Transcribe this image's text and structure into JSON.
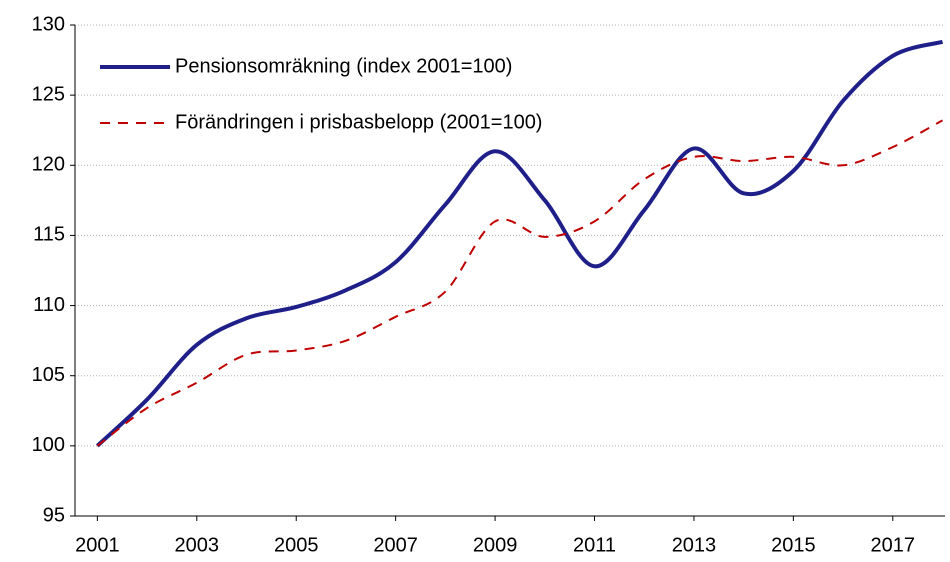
{
  "chart_data": {
    "type": "line",
    "x": [
      2001,
      2002,
      2003,
      2004,
      2005,
      2006,
      2007,
      2008,
      2009,
      2010,
      2011,
      2012,
      2013,
      2014,
      2015,
      2016,
      2017,
      2018
    ],
    "series": [
      {
        "name": "Pensionsomräkning (index 2001=100)",
        "color": "#1f1f8a",
        "style": "solid",
        "values": [
          100,
          103.3,
          107.2,
          109.1,
          109.9,
          111.1,
          113.1,
          117.2,
          121.0,
          117.5,
          112.8,
          116.8,
          121.2,
          118.0,
          119.6,
          124.6,
          127.8,
          128.8
        ]
      },
      {
        "name": "Förändringen i prisbasbelopp (2001=100)",
        "color": "#c00000",
        "style": "dashed",
        "values": [
          100,
          102.7,
          104.5,
          106.5,
          106.8,
          107.5,
          109.2,
          111.0,
          116.0,
          114.9,
          116.0,
          119.0,
          120.6,
          120.3,
          120.6,
          120.0,
          121.3,
          123.2
        ]
      }
    ],
    "xlim": [
      2000.55,
      2018.05
    ],
    "xticks": [
      2001,
      2003,
      2005,
      2007,
      2009,
      2011,
      2013,
      2015,
      2017
    ],
    "ylim": [
      95,
      130
    ],
    "yticks": [
      95,
      100,
      105,
      110,
      115,
      120,
      125,
      130
    ],
    "grid": true,
    "legend": "top-left"
  }
}
